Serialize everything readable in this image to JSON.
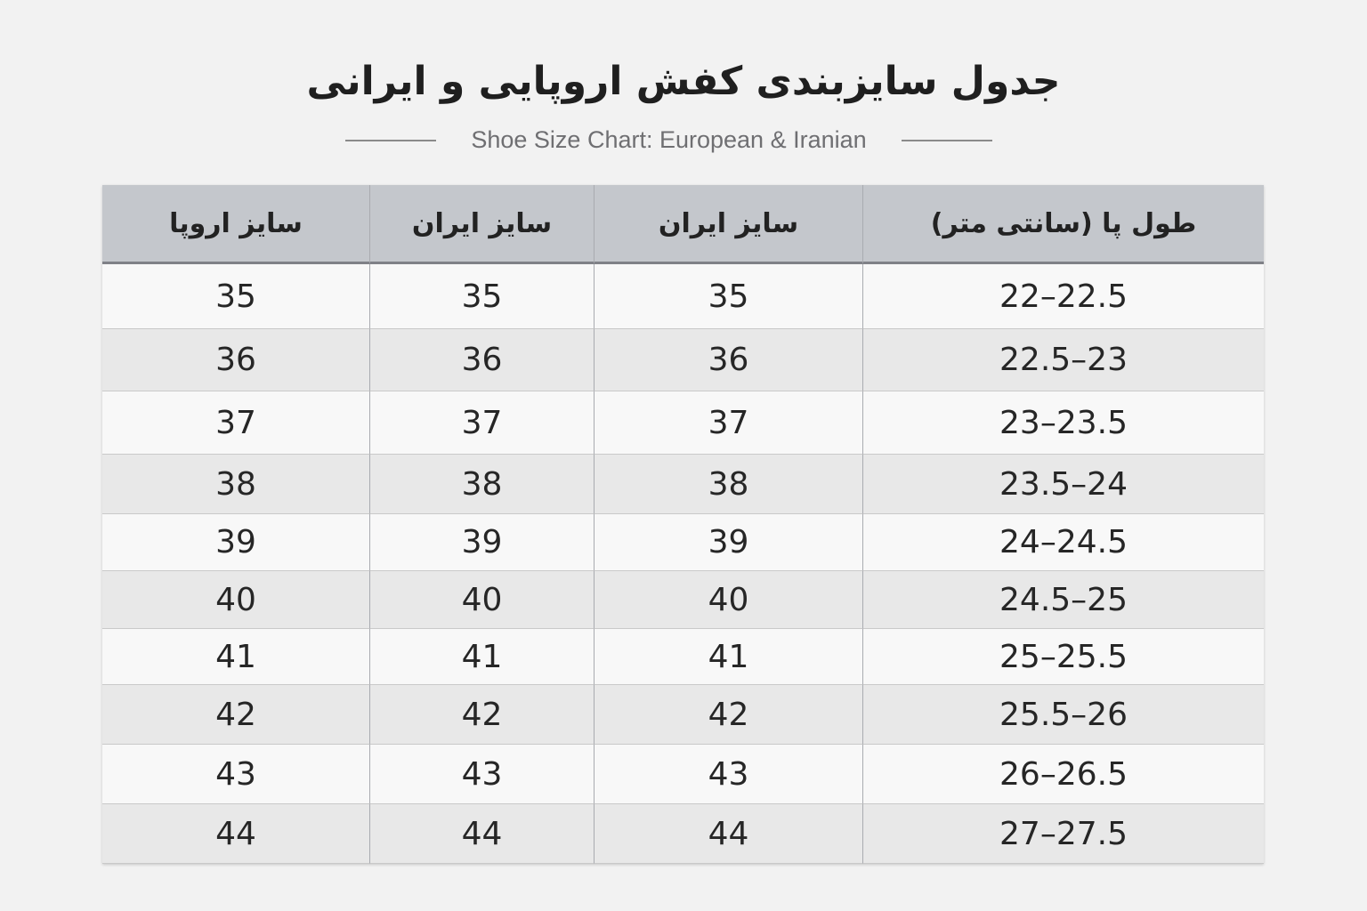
{
  "title": "جدول سایزبندی کفش اروپایی و ایرانی",
  "subtitle": "Shoe Size Chart: European & Iranian",
  "table": {
    "headers": [
      "طول پا (سانتی متر)",
      "سایز ایران",
      "سایز ایران",
      "سایز اروپا"
    ],
    "rows": [
      [
        "22–22.5",
        "35",
        "35",
        "35"
      ],
      [
        "22.5–23",
        "36",
        "36",
        "36"
      ],
      [
        "23–23.5",
        "37",
        "37",
        "37"
      ],
      [
        "23.5–24",
        "38",
        "38",
        "38"
      ],
      [
        "24–24.5",
        "39",
        "39",
        "39"
      ],
      [
        "24.5–25",
        "40",
        "40",
        "40"
      ],
      [
        "25–25.5",
        "41",
        "41",
        "41"
      ],
      [
        "25.5–26",
        "42",
        "42",
        "42"
      ],
      [
        "26–26.5",
        "43",
        "43",
        "43"
      ],
      [
        "27–27.5",
        "44",
        "44",
        "44"
      ]
    ]
  },
  "colors": {
    "header_bg": "#c4c7cc",
    "row_light": "#f8f8f8",
    "row_dark": "#e8e8e8"
  }
}
